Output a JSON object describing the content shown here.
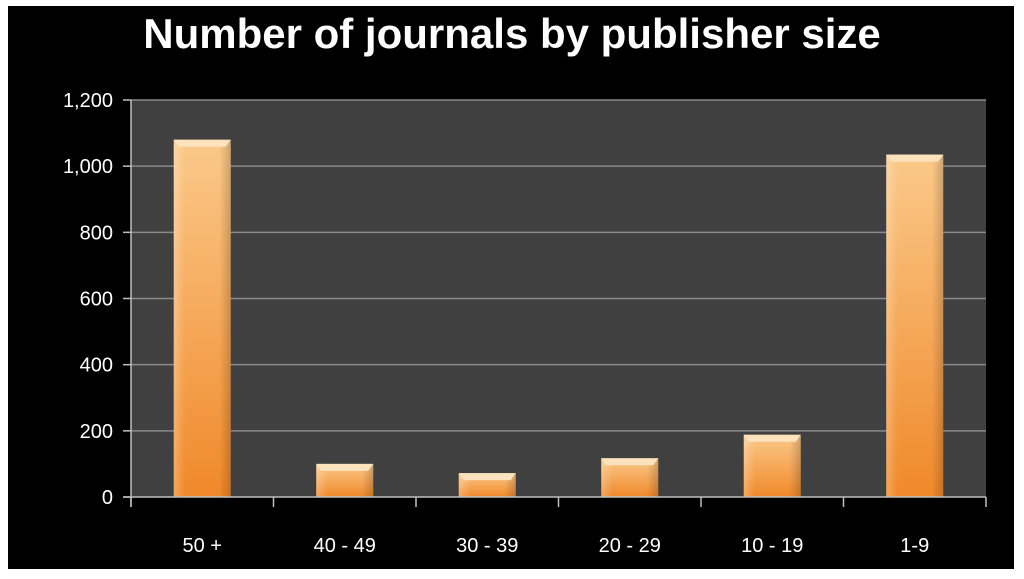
{
  "chart_data": {
    "type": "bar",
    "title": "Number of journals by publisher size",
    "categories": [
      "50 +",
      "40 - 49",
      "30 - 39",
      "20 - 29",
      "10 - 19",
      "1-9"
    ],
    "values": [
      1080,
      100,
      72,
      117,
      188,
      1035
    ],
    "ylim": [
      0,
      1200
    ],
    "yticks": [
      0,
      200,
      400,
      600,
      800,
      1000,
      1200
    ],
    "ytick_labels": [
      "0",
      "200",
      "400",
      "600",
      "800",
      "1,000",
      "1,200"
    ],
    "xlabel": "",
    "ylabel": "",
    "grid": true,
    "legend": "none",
    "colors": {
      "background": "#000000",
      "plot_area": "#404040",
      "gridline": "#8a8a8a",
      "axis": "#bfbfbf",
      "bar_light": "#fbc98a",
      "bar_dark": "#f0892a",
      "text": "#ffffff"
    }
  }
}
